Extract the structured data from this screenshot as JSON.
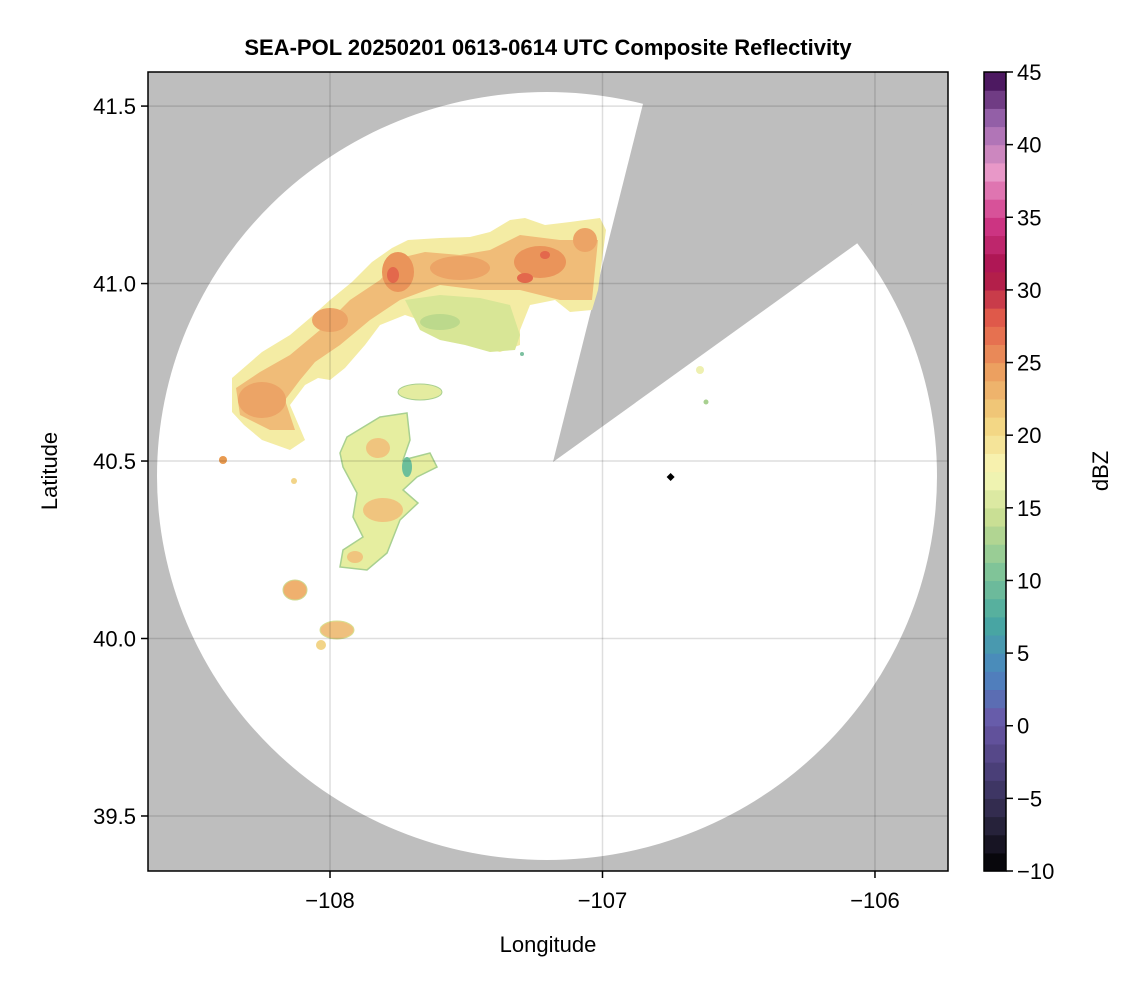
{
  "chart_data": {
    "type": "heatmap",
    "title": "SEA-POL 20250201 0613-0614 UTC Composite Reflectivity",
    "xlabel": "Longitude",
    "ylabel": "Latitude",
    "xlim": [
      -108.668,
      -105.732
    ],
    "ylim": [
      39.345,
      41.596
    ],
    "xticks": [
      -108,
      -107,
      -106
    ],
    "xtick_labels": [
      "−108",
      "−107",
      "−106"
    ],
    "yticks": [
      39.5,
      40.0,
      40.5,
      41.0,
      41.5
    ],
    "ytick_labels": [
      "39.5",
      "40.0",
      "40.5",
      "41.0",
      "41.5"
    ],
    "grid": true,
    "radar_site": {
      "lon": -106.75,
      "lat": 40.455
    },
    "colorbar": {
      "label": "dBZ",
      "range": [
        -10,
        45
      ],
      "levels": 44,
      "ticks": [
        -10,
        -5,
        0,
        5,
        10,
        15,
        20,
        25,
        30,
        35,
        40,
        45
      ],
      "tick_labels": [
        "−10",
        "−5",
        "0",
        "5",
        "10",
        "15",
        "20",
        "25",
        "30",
        "35",
        "40",
        "45"
      ],
      "colormap": [
        "#000000",
        "#2a2540",
        "#4a3f78",
        "#6a58a8",
        "#4a86c0",
        "#48a8a0",
        "#80c498",
        "#c4dc90",
        "#f8f8b8",
        "#f2d480",
        "#eca060",
        "#e4604a",
        "#a8104a",
        "#d03888",
        "#e898c8",
        "#9c68b0",
        "#3c0850"
      ]
    },
    "colors": {
      "missing": "#bebebe",
      "no_echo": "#ffffff"
    }
  }
}
